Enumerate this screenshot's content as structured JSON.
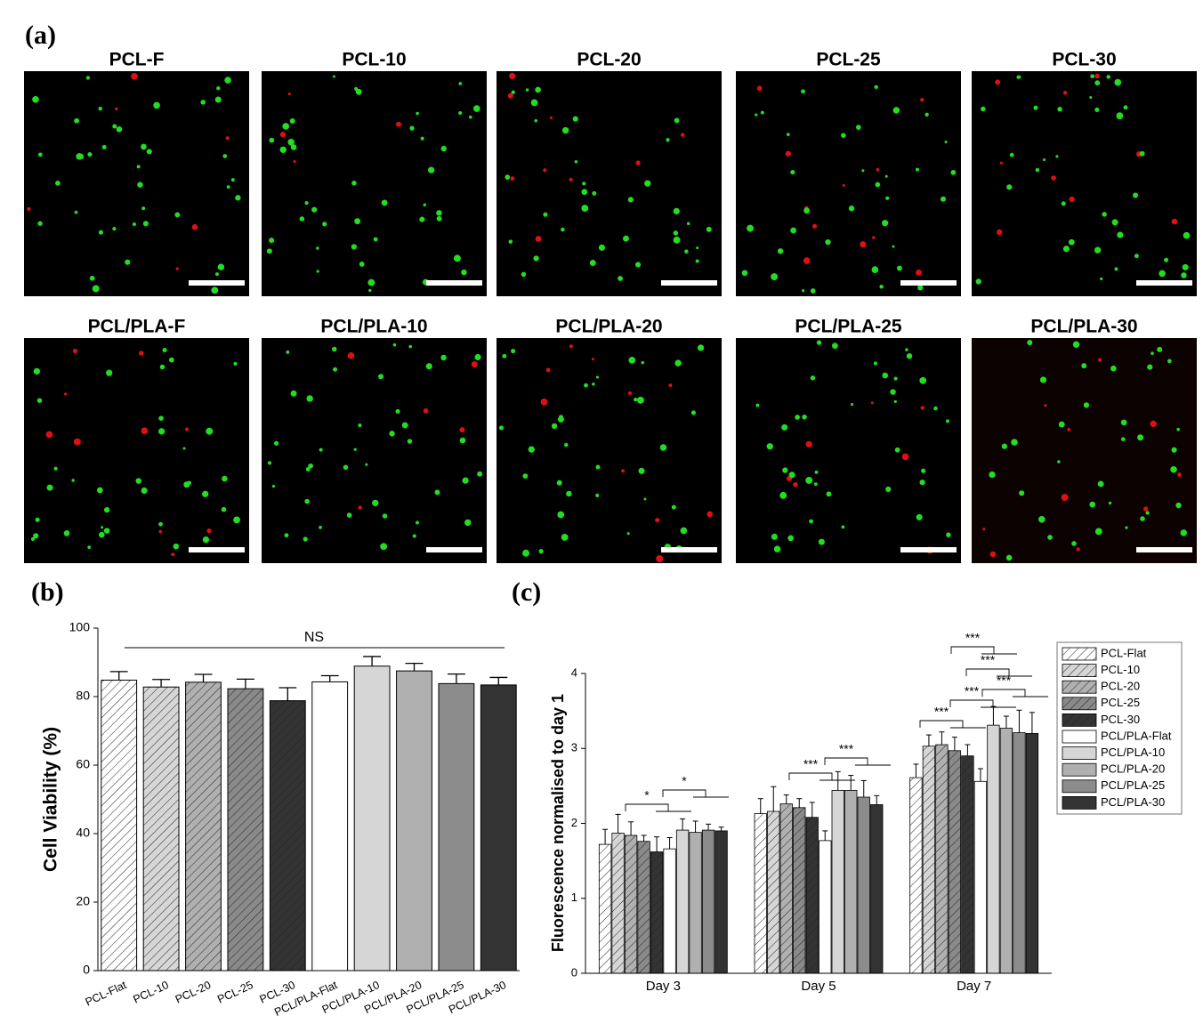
{
  "micrographs": {
    "panel_label": "(a)",
    "titles": [
      "PCL-F",
      "PCL-10",
      "PCL-20",
      "PCL-25",
      "PCL-30",
      "PCL/PLA-F",
      "PCL/PLA-10",
      "PCL/PLA-20",
      "PCL/PLA-25",
      "PCL/PLA-30"
    ]
  },
  "chart_data": [
    {
      "type": "bar",
      "panel_label": "(b)",
      "ylabel": "Cell Viability (%)",
      "annotation": "NS",
      "categories": [
        "PCL-Flat",
        "PCL-10",
        "PCL-20",
        "PCL-25",
        "PCL-30",
        "PCL/PLA-Flat",
        "PCL/PLA-10",
        "PCL/PLA-20",
        "PCL/PLA-25",
        "PCL/PLA-30"
      ],
      "values": [
        84.8,
        82.8,
        84.2,
        82.3,
        78.8,
        84.3,
        88.9,
        87.5,
        83.8,
        83.4
      ],
      "errors": [
        2.5,
        2.2,
        2.3,
        2.8,
        3.8,
        1.8,
        2.8,
        2.2,
        2.8,
        2.2
      ],
      "colors": [
        "#ffffff",
        "#d6d6d6",
        "#b0b0b0",
        "#8a8a8a",
        "#333333",
        "#ffffff",
        "#d6d6d6",
        "#b0b0b0",
        "#8c8c8c",
        "#333333"
      ],
      "hatch": [
        true,
        true,
        true,
        true,
        true,
        false,
        false,
        false,
        false,
        false
      ],
      "ylim": [
        0,
        100
      ],
      "yticks": [
        0,
        20,
        40,
        60,
        80,
        100
      ]
    },
    {
      "type": "grouped_bar",
      "panel_label": "(c)",
      "ylabel": "Fluorescence normalised to day 1",
      "categories": [
        "Day 3",
        "Day 5",
        "Day 7"
      ],
      "series": [
        {
          "name": "PCL-Flat",
          "color": "#ffffff",
          "hatch": true,
          "values": [
            1.72,
            2.13,
            2.61
          ],
          "errors": [
            0.2,
            0.2,
            0.18
          ]
        },
        {
          "name": "PCL-10",
          "color": "#d6d6d6",
          "hatch": true,
          "values": [
            1.87,
            2.16,
            3.03
          ],
          "errors": [
            0.25,
            0.33,
            0.15
          ]
        },
        {
          "name": "PCL-20",
          "color": "#b0b0b0",
          "hatch": true,
          "values": [
            1.84,
            2.26,
            3.05
          ],
          "errors": [
            0.18,
            0.12,
            0.17
          ]
        },
        {
          "name": "PCL-25",
          "color": "#8a8a8a",
          "hatch": true,
          "values": [
            1.76,
            2.21,
            2.97
          ],
          "errors": [
            0.08,
            0.12,
            0.18
          ]
        },
        {
          "name": "PCL-30",
          "color": "#333333",
          "hatch": true,
          "values": [
            1.62,
            2.08,
            2.9
          ],
          "errors": [
            0.2,
            0.2,
            0.15
          ]
        },
        {
          "name": "PCL/PLA-Flat",
          "color": "#ffffff",
          "hatch": false,
          "values": [
            1.66,
            1.77,
            2.56
          ],
          "errors": [
            0.15,
            0.13,
            0.17
          ]
        },
        {
          "name": "PCL/PLA-10",
          "color": "#d6d6d6",
          "hatch": false,
          "values": [
            1.91,
            2.44,
            3.31
          ],
          "errors": [
            0.15,
            0.25,
            0.25
          ]
        },
        {
          "name": "PCL/PLA-20",
          "color": "#b0b0b0",
          "hatch": false,
          "values": [
            1.88,
            2.44,
            3.27
          ],
          "errors": [
            0.15,
            0.2,
            0.16
          ]
        },
        {
          "name": "PCL/PLA-25",
          "color": "#8c8c8c",
          "hatch": false,
          "values": [
            1.91,
            2.35,
            3.21
          ],
          "errors": [
            0.08,
            0.22,
            0.3
          ]
        },
        {
          "name": "PCL/PLA-30",
          "color": "#333333",
          "hatch": false,
          "values": [
            1.9,
            2.25,
            3.2
          ],
          "errors": [
            0.05,
            0.12,
            0.28
          ]
        }
      ],
      "annotations": [
        "*",
        "*",
        "***",
        "***",
        "***",
        "***",
        "***",
        "***",
        "***"
      ],
      "ylim": [
        0,
        4
      ],
      "yticks": [
        0,
        1,
        2,
        3,
        4
      ]
    }
  ]
}
